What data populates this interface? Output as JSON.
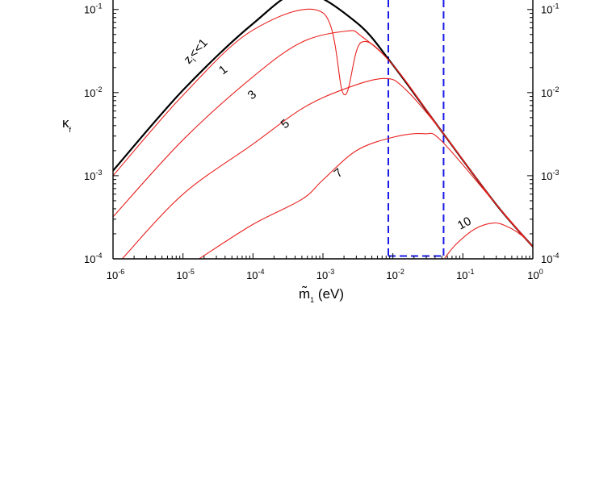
{
  "chart_data": {
    "type": "line",
    "title": "",
    "xlabel": "m̃₁ (eV)",
    "xlabel_main": "m̃",
    "xlabel_sub": "1",
    "xlabel_unit": " (eV)",
    "ylabel": "κ_f",
    "ylabel_main": "κ",
    "ylabel_sub": "f",
    "xscale": "log",
    "yscale": "log",
    "xlim": [
      1e-06,
      1
    ],
    "ylim": [
      0.0001,
      0.13
    ],
    "grid": false,
    "legend": "none",
    "x_ticks": [
      {
        "base": "10",
        "exp": "-6",
        "value": 1e-06
      },
      {
        "base": "10",
        "exp": "-5",
        "value": 1e-05
      },
      {
        "base": "10",
        "exp": "-4",
        "value": 0.0001
      },
      {
        "base": "10",
        "exp": "-3",
        "value": 0.001
      },
      {
        "base": "10",
        "exp": "-2",
        "value": 0.01
      },
      {
        "base": "10",
        "exp": "-1",
        "value": 0.1
      },
      {
        "base": "10",
        "exp": "0",
        "value": 1
      }
    ],
    "y_ticks": [
      {
        "base": "10",
        "exp": "-4",
        "value": 0.0001
      },
      {
        "base": "10",
        "exp": "-3",
        "value": 0.001
      },
      {
        "base": "10",
        "exp": "-2",
        "value": 0.01
      },
      {
        "base": "10",
        "exp": "-1",
        "value": 0.1
      }
    ],
    "series": [
      {
        "name": "z_i<<1",
        "label": "z",
        "label_sub": "i",
        "label_rest": "<<1",
        "color": "#000000",
        "points": [
          [
            1e-06,
            0.00115
          ],
          [
            1e-05,
            0.0107
          ],
          [
            0.0001,
            0.0675
          ],
          [
            0.0005,
            0.16
          ],
          [
            0.003,
            0.07
          ],
          [
            0.01,
            0.0215
          ],
          [
            0.05,
            0.0034
          ],
          [
            0.3,
            0.00045
          ],
          [
            1.0,
            0.00014
          ]
        ]
      },
      {
        "name": "1",
        "label": "1",
        "color": "#e8211e",
        "points": [
          [
            1e-06,
            0.001
          ],
          [
            1e-05,
            0.0093
          ],
          [
            0.0001,
            0.0565
          ],
          [
            0.001,
            0.091
          ],
          [
            0.002,
            0.0095
          ],
          [
            0.0035,
            0.04
          ],
          [
            0.01,
            0.0215
          ],
          [
            0.05,
            0.0034
          ],
          [
            0.3,
            0.00045
          ],
          [
            1.0,
            0.00014
          ]
        ]
      },
      {
        "name": "3",
        "label": "3",
        "color": "#e8211e",
        "points": [
          [
            1e-06,
            0.00032
          ],
          [
            1e-05,
            0.0027
          ],
          [
            0.0001,
            0.0155
          ],
          [
            0.0005,
            0.0405
          ],
          [
            0.0022,
            0.055
          ],
          [
            0.0035,
            0.048
          ],
          [
            0.01,
            0.0215
          ],
          [
            0.05,
            0.0034
          ],
          [
            0.3,
            0.00045
          ],
          [
            1.0,
            0.00014
          ]
        ]
      },
      {
        "name": "5",
        "label": "5",
        "color": "#e8211e",
        "points": [
          [
            1.35e-06,
            0.0001
          ],
          [
            1e-05,
            0.0006
          ],
          [
            0.0001,
            0.0024
          ],
          [
            0.0005,
            0.0064
          ],
          [
            0.002,
            0.011
          ],
          [
            0.0075,
            0.0148
          ],
          [
            0.015,
            0.011
          ],
          [
            0.05,
            0.0034
          ],
          [
            0.3,
            0.00045
          ],
          [
            1.0,
            0.00014
          ]
        ]
      },
      {
        "name": "7",
        "label": "7",
        "color": "#e8211e",
        "points": [
          [
            1.7e-05,
            0.0001
          ],
          [
            0.0001,
            0.00026
          ],
          [
            0.0005,
            0.00052
          ],
          [
            0.001,
            0.00089
          ],
          [
            0.003,
            0.002
          ],
          [
            0.01,
            0.0029
          ],
          [
            0.028,
            0.0032
          ],
          [
            0.05,
            0.0026
          ],
          [
            0.3,
            0.00045
          ],
          [
            1.0,
            0.00014
          ]
        ]
      },
      {
        "name": "10",
        "label": "10",
        "color": "#e8211e",
        "points": [
          [
            0.055,
            0.000102
          ],
          [
            0.08,
            0.00015
          ],
          [
            0.15,
            0.00023
          ],
          [
            0.28,
            0.00027
          ],
          [
            0.45,
            0.00024
          ],
          [
            0.7,
            0.00019
          ],
          [
            1.0,
            0.00014
          ]
        ]
      }
    ],
    "band": {
      "color": "#1a1ae6",
      "x_left": 0.0086,
      "x_right": 0.053,
      "y_bottom": 0.000108
    }
  }
}
